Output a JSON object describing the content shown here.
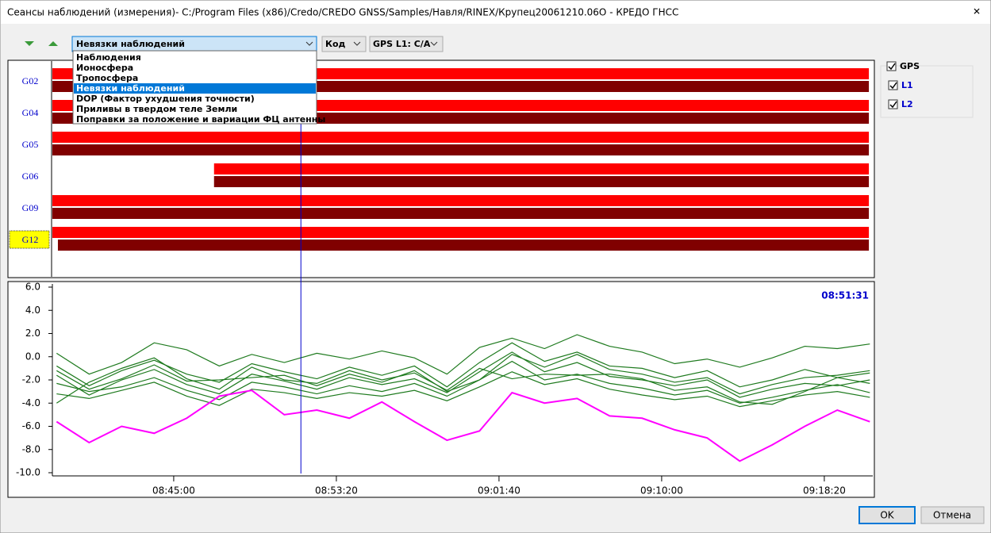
{
  "window": {
    "title": "Сеансы наблюдений (измерения)- C:/Program Files (x86)/Credo/CREDO GNSS/Samples/Навля/RINEX/Крупец20061210.06O - КРЕДО ГНСС",
    "close": "✕"
  },
  "toolbar": {
    "mode": "Невязки наблюдений",
    "options": [
      "Наблюдения",
      "Ионосфера",
      "Тропосфера",
      "Невязки наблюдений",
      "DOP (Фактор ухудшения точности)",
      "Приливы в твердом теле Земли",
      "Поправки за положение и вариации ФЦ антенны"
    ],
    "highlighted_option": 3,
    "code": "Код",
    "signal": "GPS L1: C/A"
  },
  "timeline": {
    "l1_color": "#ff0000",
    "l2_color": "#800000",
    "satellites": [
      {
        "label": "G02",
        "highlighted": false,
        "l1": [
          "08:38:47",
          "09:20:37"
        ],
        "l2": [
          "08:38:47",
          "09:20:37"
        ]
      },
      {
        "label": "G04",
        "highlighted": false,
        "l1": [
          "08:38:47",
          "09:20:37"
        ],
        "l2": [
          "08:38:47",
          "09:20:37"
        ]
      },
      {
        "label": "G05",
        "highlighted": false,
        "l1": [
          "08:38:47",
          "09:20:37"
        ],
        "l2": [
          "08:38:47",
          "09:20:37"
        ]
      },
      {
        "label": "G06",
        "highlighted": false,
        "l1": [
          "08:47:04",
          "09:20:37"
        ],
        "l2": [
          "08:47:04",
          "09:20:37"
        ]
      },
      {
        "label": "G09",
        "highlighted": false,
        "l1": [
          "08:38:47",
          "09:20:37"
        ],
        "l2": [
          "08:38:47",
          "09:20:37"
        ]
      },
      {
        "label": "G12",
        "highlighted": true,
        "l1": [
          "08:38:47",
          "09:20:37"
        ],
        "l2": [
          "08:39:04",
          "09:20:37"
        ]
      }
    ]
  },
  "chart_data": {
    "type": "line",
    "cursor": "08:51:31",
    "x": [
      "08:39:00",
      "08:40:40",
      "08:42:20",
      "08:44:00",
      "08:45:40",
      "08:47:20",
      "08:49:00",
      "08:50:40",
      "08:52:20",
      "08:54:00",
      "08:55:40",
      "08:57:20",
      "08:59:00",
      "09:00:40",
      "09:02:20",
      "09:04:00",
      "09:05:40",
      "09:07:20",
      "09:09:00",
      "09:10:40",
      "09:12:20",
      "09:14:00",
      "09:15:40",
      "09:17:20",
      "09:19:00",
      "09:20:40"
    ],
    "xlim": [
      "08:38:47",
      "09:20:49"
    ],
    "xticks": [
      "08:45:00",
      "08:53:20",
      "09:01:40",
      "09:10:00",
      "09:18:20"
    ],
    "ylim": [
      -10,
      6
    ],
    "yticks": [
      {
        "value": -10,
        "label": "-10.0"
      },
      {
        "value": -8,
        "label": "-8.0"
      },
      {
        "value": -6,
        "label": "-6.0"
      },
      {
        "value": -4,
        "label": "-4.0"
      },
      {
        "value": -2,
        "label": "-2.0"
      },
      {
        "value": 0,
        "label": "0.0"
      },
      {
        "value": 2,
        "label": "2.0"
      },
      {
        "value": 4,
        "label": "4.0"
      },
      {
        "value": 6,
        "label": "6.0"
      }
    ],
    "series": [
      {
        "color": "#1e7a1e",
        "values": [
          0.3,
          -1.5,
          -0.5,
          1.2,
          0.6,
          -0.8,
          0.2,
          -0.5,
          0.3,
          -0.2,
          0.5,
          -0.1,
          -1.5,
          0.8,
          1.6,
          0.7,
          1.9,
          0.9,
          0.4,
          -0.6,
          -0.2,
          -0.9,
          -0.1,
          0.9,
          0.7,
          1.1
        ]
      },
      {
        "color": "#1e7a1e",
        "values": [
          -0.8,
          -2.5,
          -1.2,
          -0.3,
          -1.5,
          -2.2,
          -0.6,
          -1.3,
          -1.9,
          -0.9,
          -1.6,
          -0.8,
          -2.6,
          -0.5,
          1.2,
          -0.4,
          0.4,
          -0.8,
          -1.0,
          -1.8,
          -1.2,
          -2.6,
          -2.0,
          -1.1,
          -1.8,
          -1.4
        ]
      },
      {
        "color": "#1e7a1e",
        "values": [
          -1.6,
          -3.3,
          -2.0,
          -1.1,
          -2.4,
          -3.2,
          -1.5,
          -2.1,
          -2.8,
          -1.8,
          -2.4,
          -1.9,
          -3.1,
          -1.3,
          0.4,
          -1.3,
          -0.5,
          -1.7,
          -2.0,
          -2.5,
          -2.0,
          -3.5,
          -2.8,
          -2.3,
          -2.5,
          -2.0
        ]
      },
      {
        "color": "#1e7a1e",
        "values": [
          -2.3,
          -3.0,
          -2.6,
          -1.8,
          -2.9,
          -3.7,
          -2.2,
          -2.6,
          -3.2,
          -2.5,
          -3.0,
          -2.3,
          -3.4,
          -2.0,
          -0.4,
          -2.0,
          -1.5,
          -2.3,
          -2.7,
          -3.3,
          -2.9,
          -4.0,
          -3.5,
          -2.9,
          -2.4,
          -3.1
        ]
      },
      {
        "color": "#1e7a1e",
        "values": [
          -3.2,
          -3.6,
          -2.9,
          -2.2,
          -3.4,
          -4.2,
          -2.8,
          -3.1,
          -3.6,
          -3.1,
          -3.4,
          -2.9,
          -3.8,
          -2.6,
          -1.3,
          -2.4,
          -1.9,
          -2.8,
          -3.3,
          -3.7,
          -3.4,
          -4.3,
          -3.8,
          -3.3,
          -3.0,
          -3.5
        ]
      },
      {
        "color": "#1e7a1e",
        "values": [
          -4.0,
          -2.2,
          -1.0,
          -0.1,
          -1.9,
          -2.8,
          -0.9,
          -2.0,
          -2.3,
          -1.2,
          -2.0,
          -1.4,
          -2.9,
          -1.0,
          -1.9,
          -1.5,
          -1.6,
          -1.5,
          -1.9,
          -2.9,
          -2.6,
          -3.9,
          -4.1,
          -3.0,
          -1.8,
          -2.3
        ]
      },
      {
        "color": "#1e7a1e",
        "values": [
          -1.2,
          -2.8,
          -1.9,
          -0.7,
          -2.1,
          -2.0,
          -1.8,
          -1.6,
          -2.5,
          -1.5,
          -2.2,
          -1.2,
          -3.0,
          -2.0,
          0.2,
          -0.9,
          0.2,
          -1.1,
          -1.5,
          -2.2,
          -1.8,
          -3.2,
          -2.4,
          -1.8,
          -1.6,
          -1.2
        ]
      },
      {
        "color": "#ff00ff",
        "values": [
          -5.6,
          -7.4,
          -6.0,
          -6.6,
          -5.3,
          -3.4,
          -2.9,
          -5.0,
          -4.6,
          -5.3,
          -3.9,
          -5.6,
          -7.2,
          -6.4,
          -3.1,
          -4.0,
          -3.6,
          -5.1,
          -5.3,
          -6.3,
          -7.0,
          -9.0,
          -7.6,
          -6.0,
          -4.6,
          -5.6
        ]
      }
    ]
  },
  "legend": {
    "group": "GPS",
    "items": [
      "L1",
      "L2"
    ]
  },
  "buttons": {
    "ok": "OK",
    "cancel": "Отмена"
  }
}
